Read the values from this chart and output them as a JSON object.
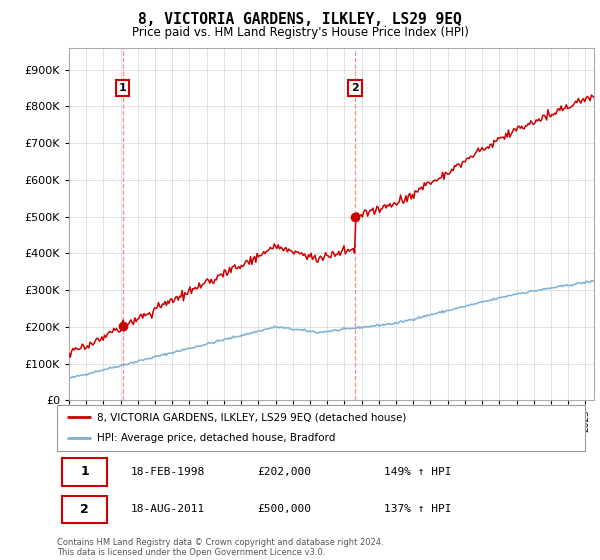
{
  "title": "8, VICTORIA GARDENS, ILKLEY, LS29 9EQ",
  "subtitle": "Price paid vs. HM Land Registry's House Price Index (HPI)",
  "ytick_vals": [
    0,
    100000,
    200000,
    300000,
    400000,
    500000,
    600000,
    700000,
    800000,
    900000
  ],
  "ylim": [
    0,
    960000
  ],
  "sale1_date": 1998.12,
  "sale1_price": 202000,
  "sale2_date": 2011.62,
  "sale2_price": 500000,
  "sale1_label": "1",
  "sale2_label": "2",
  "red_color": "#cc0000",
  "blue_color": "#7bafd4",
  "dashed_color": "#ff8888",
  "legend_entry1": "8, VICTORIA GARDENS, ILKLEY, LS29 9EQ (detached house)",
  "legend_entry2": "HPI: Average price, detached house, Bradford",
  "table_row1": [
    "1",
    "18-FEB-1998",
    "£202,000",
    "149% ↑ HPI"
  ],
  "table_row2": [
    "2",
    "18-AUG-2011",
    "£500,000",
    "137% ↑ HPI"
  ],
  "footer": "Contains HM Land Registry data © Crown copyright and database right 2024.\nThis data is licensed under the Open Government Licence v3.0.",
  "xmin": 1995.0,
  "xmax": 2025.5
}
